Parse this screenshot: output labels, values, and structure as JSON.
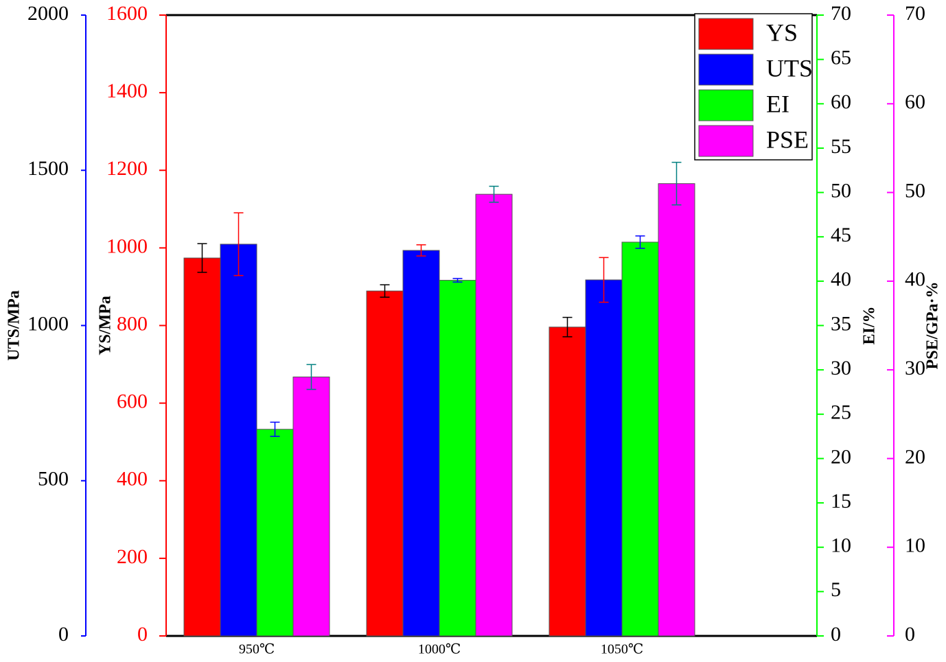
{
  "chart_data": {
    "type": "bar",
    "categories": [
      "950℃",
      "1000℃",
      "1050℃"
    ],
    "axes": [
      {
        "label": "UTS/MPa",
        "lim": [
          0,
          2000
        ],
        "ticks": [
          0,
          500,
          1000,
          1500,
          2000
        ],
        "color": "#0000ff",
        "label_color": "#000000"
      },
      {
        "label": "YS/MPa",
        "lim": [
          0,
          1600
        ],
        "ticks": [
          0,
          200,
          400,
          600,
          800,
          1000,
          1200,
          1400,
          1600
        ],
        "color": "#ff0000",
        "label_color": "#ff0000"
      },
      {
        "label": "EI/%",
        "lim": [
          0,
          70
        ],
        "ticks": [
          0,
          5,
          10,
          15,
          20,
          25,
          30,
          35,
          40,
          45,
          50,
          55,
          60,
          65,
          70
        ],
        "color": "#00ff00",
        "label_color": "#000000"
      },
      {
        "label": "PSE/GPa·%",
        "lim": [
          0,
          70
        ],
        "ticks": [
          0,
          10,
          20,
          30,
          40,
          50,
          60,
          70
        ],
        "color": "#ff00ff",
        "label_color": "#000000"
      }
    ],
    "series": [
      {
        "name": "YS",
        "color": "#ff0000",
        "axis": 1,
        "values": [
          974,
          889,
          796
        ],
        "errors": [
          37,
          16,
          25
        ],
        "error_color": "#000000"
      },
      {
        "name": "UTS",
        "color": "#0000ff",
        "axis": 0,
        "values": [
          1262,
          1242,
          1147
        ],
        "errors": [
          101,
          18,
          72
        ],
        "error_color": "#ff0000"
      },
      {
        "name": "EI",
        "color": "#00ff00",
        "axis": 2,
        "values": [
          23.3,
          40.1,
          44.4
        ],
        "errors": [
          0.8,
          0.2,
          0.7
        ],
        "error_color": "#0000ff"
      },
      {
        "name": "PSE",
        "color": "#ff00ff",
        "axis": 3,
        "values": [
          29.2,
          49.8,
          51.0
        ],
        "errors": [
          1.4,
          0.9,
          2.4
        ],
        "error_color": "#008080"
      }
    ]
  }
}
